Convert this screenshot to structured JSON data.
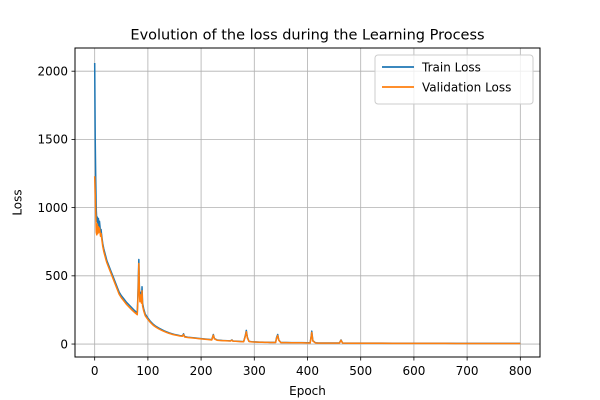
{
  "chart_data": {
    "type": "line",
    "title": "Evolution of the loss during the Learning Process",
    "xlabel": "Epoch",
    "ylabel": "Loss",
    "xlim": [
      -37,
      837
    ],
    "ylim": [
      -95,
      2170
    ],
    "xticks": [
      0,
      100,
      200,
      300,
      400,
      500,
      600,
      700,
      800
    ],
    "yticks": [
      0,
      500,
      1000,
      1500,
      2000
    ],
    "grid": true,
    "legend_position": "top-right",
    "series": [
      {
        "name": "Train Loss",
        "color": "#1f77b4",
        "points": [
          [
            0,
            2060
          ],
          [
            1,
            1500
          ],
          [
            2,
            1200
          ],
          [
            3,
            980
          ],
          [
            4,
            900
          ],
          [
            5,
            930
          ],
          [
            6,
            870
          ],
          [
            7,
            920
          ],
          [
            8,
            860
          ],
          [
            9,
            900
          ],
          [
            10,
            860
          ],
          [
            11,
            820
          ],
          [
            12,
            840
          ],
          [
            13,
            800
          ],
          [
            14,
            770
          ],
          [
            15,
            740
          ],
          [
            17,
            700
          ],
          [
            19,
            670
          ],
          [
            21,
            640
          ],
          [
            23,
            610
          ],
          [
            25,
            590
          ],
          [
            28,
            560
          ],
          [
            31,
            530
          ],
          [
            34,
            500
          ],
          [
            37,
            470
          ],
          [
            40,
            440
          ],
          [
            43,
            410
          ],
          [
            46,
            380
          ],
          [
            50,
            355
          ],
          [
            55,
            330
          ],
          [
            60,
            305
          ],
          [
            65,
            285
          ],
          [
            70,
            265
          ],
          [
            75,
            245
          ],
          [
            78,
            235
          ],
          [
            80,
            230
          ],
          [
            81,
            330
          ],
          [
            82,
            480
          ],
          [
            83,
            620
          ],
          [
            84,
            420
          ],
          [
            85,
            340
          ],
          [
            86,
            380
          ],
          [
            88,
            320
          ],
          [
            89,
            420
          ],
          [
            90,
            300
          ],
          [
            92,
            260
          ],
          [
            95,
            220
          ],
          [
            100,
            190
          ],
          [
            105,
            165
          ],
          [
            110,
            145
          ],
          [
            115,
            130
          ],
          [
            120,
            118
          ],
          [
            125,
            108
          ],
          [
            130,
            98
          ],
          [
            135,
            90
          ],
          [
            140,
            82
          ],
          [
            145,
            76
          ],
          [
            150,
            70
          ],
          [
            155,
            66
          ],
          [
            160,
            62
          ],
          [
            165,
            60
          ],
          [
            167,
            75
          ],
          [
            169,
            55
          ],
          [
            175,
            50
          ],
          [
            180,
            48
          ],
          [
            185,
            46
          ],
          [
            190,
            44
          ],
          [
            195,
            42
          ],
          [
            200,
            40
          ],
          [
            205,
            38
          ],
          [
            210,
            36
          ],
          [
            215,
            34
          ],
          [
            220,
            32
          ],
          [
            223,
            70
          ],
          [
            225,
            40
          ],
          [
            230,
            30
          ],
          [
            235,
            28
          ],
          [
            240,
            26
          ],
          [
            245,
            25
          ],
          [
            250,
            24
          ],
          [
            255,
            23
          ],
          [
            258,
            30
          ],
          [
            260,
            22
          ],
          [
            265,
            21
          ],
          [
            270,
            20
          ],
          [
            275,
            19
          ],
          [
            280,
            18
          ],
          [
            283,
            60
          ],
          [
            285,
            100
          ],
          [
            287,
            50
          ],
          [
            290,
            20
          ],
          [
            295,
            17
          ],
          [
            300,
            16
          ],
          [
            305,
            15
          ],
          [
            310,
            14
          ],
          [
            315,
            14
          ],
          [
            320,
            13
          ],
          [
            325,
            13
          ],
          [
            330,
            12
          ],
          [
            335,
            12
          ],
          [
            340,
            12
          ],
          [
            342,
            50
          ],
          [
            344,
            70
          ],
          [
            346,
            30
          ],
          [
            350,
            11
          ],
          [
            360,
            11
          ],
          [
            370,
            10
          ],
          [
            380,
            10
          ],
          [
            390,
            10
          ],
          [
            400,
            9
          ],
          [
            405,
            9
          ],
          [
            407,
            60
          ],
          [
            408,
            95
          ],
          [
            410,
            25
          ],
          [
            415,
            9
          ],
          [
            420,
            8
          ],
          [
            430,
            8
          ],
          [
            440,
            8
          ],
          [
            450,
            8
          ],
          [
            460,
            8
          ],
          [
            463,
            30
          ],
          [
            466,
            8
          ],
          [
            480,
            7
          ],
          [
            500,
            7
          ],
          [
            520,
            7
          ],
          [
            540,
            7
          ],
          [
            560,
            6
          ],
          [
            580,
            6
          ],
          [
            600,
            6
          ],
          [
            620,
            6
          ],
          [
            640,
            6
          ],
          [
            660,
            6
          ],
          [
            680,
            5
          ],
          [
            700,
            5
          ],
          [
            720,
            5
          ],
          [
            740,
            5
          ],
          [
            760,
            5
          ],
          [
            780,
            5
          ],
          [
            800,
            5
          ]
        ]
      },
      {
        "name": "Validation Loss",
        "color": "#ff7f0e",
        "points": [
          [
            0,
            1230
          ],
          [
            1,
            1100
          ],
          [
            2,
            960
          ],
          [
            3,
            820
          ],
          [
            4,
            800
          ],
          [
            5,
            880
          ],
          [
            6,
            810
          ],
          [
            7,
            860
          ],
          [
            8,
            820
          ],
          [
            9,
            850
          ],
          [
            10,
            820
          ],
          [
            11,
            790
          ],
          [
            12,
            810
          ],
          [
            13,
            780
          ],
          [
            14,
            750
          ],
          [
            15,
            720
          ],
          [
            17,
            680
          ],
          [
            19,
            650
          ],
          [
            21,
            620
          ],
          [
            23,
            595
          ],
          [
            25,
            575
          ],
          [
            28,
            545
          ],
          [
            31,
            515
          ],
          [
            34,
            485
          ],
          [
            37,
            455
          ],
          [
            40,
            425
          ],
          [
            43,
            395
          ],
          [
            46,
            365
          ],
          [
            50,
            340
          ],
          [
            55,
            315
          ],
          [
            60,
            290
          ],
          [
            65,
            270
          ],
          [
            70,
            250
          ],
          [
            75,
            232
          ],
          [
            78,
            222
          ],
          [
            80,
            215
          ],
          [
            81,
            300
          ],
          [
            82,
            420
          ],
          [
            83,
            590
          ],
          [
            84,
            380
          ],
          [
            85,
            310
          ],
          [
            86,
            360
          ],
          [
            88,
            300
          ],
          [
            89,
            390
          ],
          [
            90,
            280
          ],
          [
            92,
            245
          ],
          [
            95,
            208
          ],
          [
            100,
            180
          ],
          [
            105,
            157
          ],
          [
            110,
            138
          ],
          [
            115,
            124
          ],
          [
            120,
            112
          ],
          [
            125,
            102
          ],
          [
            130,
            93
          ],
          [
            135,
            85
          ],
          [
            140,
            78
          ],
          [
            145,
            72
          ],
          [
            150,
            67
          ],
          [
            155,
            63
          ],
          [
            160,
            59
          ],
          [
            165,
            57
          ],
          [
            167,
            70
          ],
          [
            169,
            52
          ],
          [
            175,
            48
          ],
          [
            180,
            46
          ],
          [
            185,
            44
          ],
          [
            190,
            42
          ],
          [
            195,
            40
          ],
          [
            200,
            38
          ],
          [
            205,
            36
          ],
          [
            210,
            34
          ],
          [
            215,
            32
          ],
          [
            220,
            30
          ],
          [
            223,
            65
          ],
          [
            225,
            38
          ],
          [
            230,
            28
          ],
          [
            235,
            26
          ],
          [
            240,
            25
          ],
          [
            245,
            24
          ],
          [
            250,
            23
          ],
          [
            255,
            22
          ],
          [
            258,
            28
          ],
          [
            260,
            21
          ],
          [
            265,
            20
          ],
          [
            270,
            19
          ],
          [
            275,
            18
          ],
          [
            280,
            17
          ],
          [
            283,
            55
          ],
          [
            285,
            90
          ],
          [
            287,
            45
          ],
          [
            290,
            19
          ],
          [
            295,
            16
          ],
          [
            300,
            15
          ],
          [
            305,
            14
          ],
          [
            310,
            13
          ],
          [
            315,
            13
          ],
          [
            320,
            12
          ],
          [
            325,
            12
          ],
          [
            330,
            11
          ],
          [
            335,
            11
          ],
          [
            340,
            11
          ],
          [
            342,
            45
          ],
          [
            344,
            62
          ],
          [
            346,
            28
          ],
          [
            350,
            10
          ],
          [
            360,
            10
          ],
          [
            370,
            9
          ],
          [
            380,
            9
          ],
          [
            390,
            9
          ],
          [
            400,
            8
          ],
          [
            405,
            8
          ],
          [
            407,
            55
          ],
          [
            408,
            85
          ],
          [
            410,
            22
          ],
          [
            415,
            8
          ],
          [
            420,
            7
          ],
          [
            430,
            7
          ],
          [
            440,
            7
          ],
          [
            450,
            7
          ],
          [
            460,
            7
          ],
          [
            463,
            28
          ],
          [
            466,
            7
          ],
          [
            480,
            6
          ],
          [
            500,
            6
          ],
          [
            520,
            6
          ],
          [
            540,
            6
          ],
          [
            560,
            5
          ],
          [
            580,
            5
          ],
          [
            600,
            5
          ],
          [
            620,
            5
          ],
          [
            640,
            5
          ],
          [
            660,
            5
          ],
          [
            680,
            4
          ],
          [
            700,
            4
          ],
          [
            720,
            4
          ],
          [
            740,
            4
          ],
          [
            760,
            4
          ],
          [
            780,
            4
          ],
          [
            800,
            4
          ]
        ]
      }
    ]
  }
}
